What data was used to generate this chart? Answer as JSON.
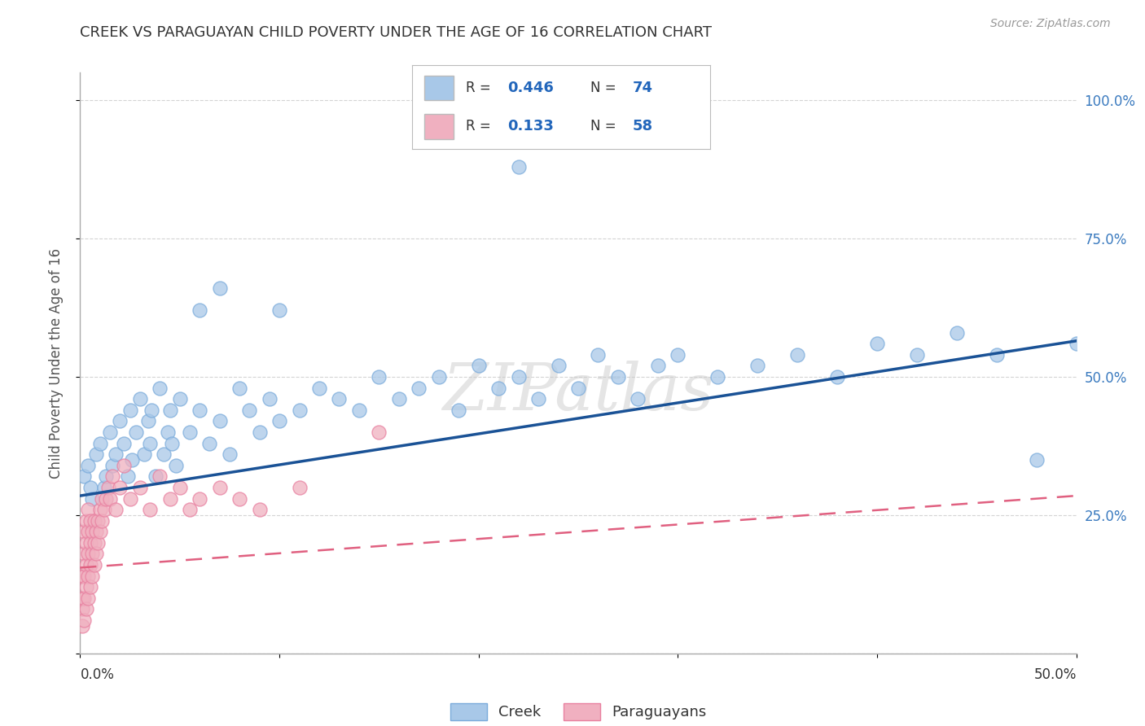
{
  "title": "CREEK VS PARAGUAYAN CHILD POVERTY UNDER THE AGE OF 16 CORRELATION CHART",
  "source": "Source: ZipAtlas.com",
  "ylabel": "Child Poverty Under the Age of 16",
  "creek_color": "#a8c8e8",
  "creek_edge_color": "#7aabdb",
  "para_color": "#f0b0c0",
  "para_edge_color": "#e880a0",
  "creek_line_color": "#1a5296",
  "para_line_color": "#e06080",
  "watermark": "ZIPatlas",
  "creek_R": 0.446,
  "creek_N": 74,
  "para_R": 0.133,
  "para_N": 58,
  "creek_points": [
    [
      0.002,
      0.32
    ],
    [
      0.004,
      0.34
    ],
    [
      0.005,
      0.3
    ],
    [
      0.006,
      0.28
    ],
    [
      0.008,
      0.36
    ],
    [
      0.01,
      0.38
    ],
    [
      0.012,
      0.3
    ],
    [
      0.013,
      0.32
    ],
    [
      0.015,
      0.4
    ],
    [
      0.016,
      0.34
    ],
    [
      0.018,
      0.36
    ],
    [
      0.02,
      0.42
    ],
    [
      0.022,
      0.38
    ],
    [
      0.024,
      0.32
    ],
    [
      0.025,
      0.44
    ],
    [
      0.026,
      0.35
    ],
    [
      0.028,
      0.4
    ],
    [
      0.03,
      0.46
    ],
    [
      0.032,
      0.36
    ],
    [
      0.034,
      0.42
    ],
    [
      0.035,
      0.38
    ],
    [
      0.036,
      0.44
    ],
    [
      0.038,
      0.32
    ],
    [
      0.04,
      0.48
    ],
    [
      0.042,
      0.36
    ],
    [
      0.044,
      0.4
    ],
    [
      0.045,
      0.44
    ],
    [
      0.046,
      0.38
    ],
    [
      0.048,
      0.34
    ],
    [
      0.05,
      0.46
    ],
    [
      0.055,
      0.4
    ],
    [
      0.06,
      0.44
    ],
    [
      0.065,
      0.38
    ],
    [
      0.07,
      0.42
    ],
    [
      0.075,
      0.36
    ],
    [
      0.08,
      0.48
    ],
    [
      0.085,
      0.44
    ],
    [
      0.09,
      0.4
    ],
    [
      0.095,
      0.46
    ],
    [
      0.1,
      0.42
    ],
    [
      0.11,
      0.44
    ],
    [
      0.12,
      0.48
    ],
    [
      0.13,
      0.46
    ],
    [
      0.14,
      0.44
    ],
    [
      0.15,
      0.5
    ],
    [
      0.16,
      0.46
    ],
    [
      0.17,
      0.48
    ],
    [
      0.18,
      0.5
    ],
    [
      0.19,
      0.44
    ],
    [
      0.2,
      0.52
    ],
    [
      0.21,
      0.48
    ],
    [
      0.22,
      0.5
    ],
    [
      0.23,
      0.46
    ],
    [
      0.24,
      0.52
    ],
    [
      0.25,
      0.48
    ],
    [
      0.26,
      0.54
    ],
    [
      0.27,
      0.5
    ],
    [
      0.28,
      0.46
    ],
    [
      0.29,
      0.52
    ],
    [
      0.3,
      0.54
    ],
    [
      0.32,
      0.5
    ],
    [
      0.34,
      0.52
    ],
    [
      0.36,
      0.54
    ],
    [
      0.38,
      0.5
    ],
    [
      0.4,
      0.56
    ],
    [
      0.42,
      0.54
    ],
    [
      0.44,
      0.58
    ],
    [
      0.46,
      0.54
    ],
    [
      0.48,
      0.35
    ],
    [
      0.5,
      0.56
    ],
    [
      0.06,
      0.62
    ],
    [
      0.1,
      0.62
    ],
    [
      0.22,
      0.88
    ],
    [
      0.07,
      0.66
    ]
  ],
  "para_points": [
    [
      0.001,
      0.05
    ],
    [
      0.001,
      0.08
    ],
    [
      0.001,
      0.1
    ],
    [
      0.001,
      0.14
    ],
    [
      0.002,
      0.06
    ],
    [
      0.002,
      0.1
    ],
    [
      0.002,
      0.14
    ],
    [
      0.002,
      0.18
    ],
    [
      0.002,
      0.22
    ],
    [
      0.003,
      0.08
    ],
    [
      0.003,
      0.12
    ],
    [
      0.003,
      0.16
    ],
    [
      0.003,
      0.2
    ],
    [
      0.003,
      0.24
    ],
    [
      0.004,
      0.1
    ],
    [
      0.004,
      0.14
    ],
    [
      0.004,
      0.18
    ],
    [
      0.004,
      0.22
    ],
    [
      0.004,
      0.26
    ],
    [
      0.005,
      0.12
    ],
    [
      0.005,
      0.16
    ],
    [
      0.005,
      0.2
    ],
    [
      0.005,
      0.24
    ],
    [
      0.006,
      0.14
    ],
    [
      0.006,
      0.18
    ],
    [
      0.006,
      0.22
    ],
    [
      0.007,
      0.16
    ],
    [
      0.007,
      0.2
    ],
    [
      0.007,
      0.24
    ],
    [
      0.008,
      0.18
    ],
    [
      0.008,
      0.22
    ],
    [
      0.009,
      0.2
    ],
    [
      0.009,
      0.24
    ],
    [
      0.01,
      0.22
    ],
    [
      0.01,
      0.26
    ],
    [
      0.011,
      0.24
    ],
    [
      0.011,
      0.28
    ],
    [
      0.012,
      0.26
    ],
    [
      0.013,
      0.28
    ],
    [
      0.014,
      0.3
    ],
    [
      0.015,
      0.28
    ],
    [
      0.016,
      0.32
    ],
    [
      0.018,
      0.26
    ],
    [
      0.02,
      0.3
    ],
    [
      0.022,
      0.34
    ],
    [
      0.025,
      0.28
    ],
    [
      0.03,
      0.3
    ],
    [
      0.035,
      0.26
    ],
    [
      0.04,
      0.32
    ],
    [
      0.045,
      0.28
    ],
    [
      0.05,
      0.3
    ],
    [
      0.055,
      0.26
    ],
    [
      0.06,
      0.28
    ],
    [
      0.07,
      0.3
    ],
    [
      0.08,
      0.28
    ],
    [
      0.09,
      0.26
    ],
    [
      0.11,
      0.3
    ],
    [
      0.15,
      0.4
    ]
  ],
  "xlim": [
    0.0,
    0.5
  ],
  "ylim": [
    0.0,
    1.05
  ],
  "y_ticks": [
    0.0,
    0.25,
    0.5,
    0.75,
    1.0
  ],
  "y_tick_labels": [
    "",
    "25.0%",
    "50.0%",
    "75.0%",
    "100.0%"
  ],
  "background_color": "#ffffff",
  "grid_color": "#d0d0d0"
}
